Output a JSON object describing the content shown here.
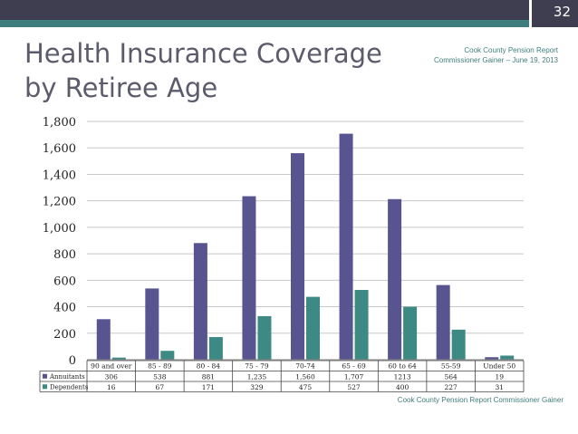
{
  "slide": {
    "page_number": "32",
    "title_line1": "Health Insurance Coverage",
    "title_line2": "by Retiree Age",
    "report_line1": "Cook County Pension Report",
    "report_line2": "Commissioner Gainer – June 19, 2013",
    "footer": "Cook County Pension Report Commissioner Gainer"
  },
  "colors": {
    "annuitants": "#575490",
    "dependents": "#3d8a85",
    "topbar": "#3e3e50",
    "accent_teal": "#3f7e7c"
  },
  "chart_data": {
    "type": "bar",
    "categories": [
      "90 and over",
      "85 - 89",
      "80 - 84",
      "75 - 79",
      "70-74",
      "65 - 69",
      "60 to 64",
      "55-59",
      "Under 50"
    ],
    "series": [
      {
        "name": "Annuitants",
        "values": [
          306,
          538,
          881,
          1235,
          1560,
          1707,
          1213,
          564,
          19
        ],
        "labels": [
          "306",
          "538",
          "881",
          "1,235",
          "1,560",
          "1,707",
          "1213",
          "564",
          "19"
        ]
      },
      {
        "name": "Dependents",
        "values": [
          16,
          67,
          171,
          329,
          475,
          527,
          400,
          227,
          31
        ],
        "labels": [
          "16",
          "67",
          "171",
          "329",
          "475",
          "527",
          "400",
          "227",
          "31"
        ]
      }
    ],
    "ylim": [
      0,
      1800
    ],
    "yticks": [
      0,
      200,
      400,
      600,
      800,
      1000,
      1200,
      1400,
      1600,
      1800
    ],
    "ytick_labels": [
      "0",
      "200",
      "400",
      "600",
      "800",
      "1,000",
      "1,200",
      "1,400",
      "1,600",
      "1,800"
    ],
    "grid": true,
    "legend": "data-table-below"
  }
}
